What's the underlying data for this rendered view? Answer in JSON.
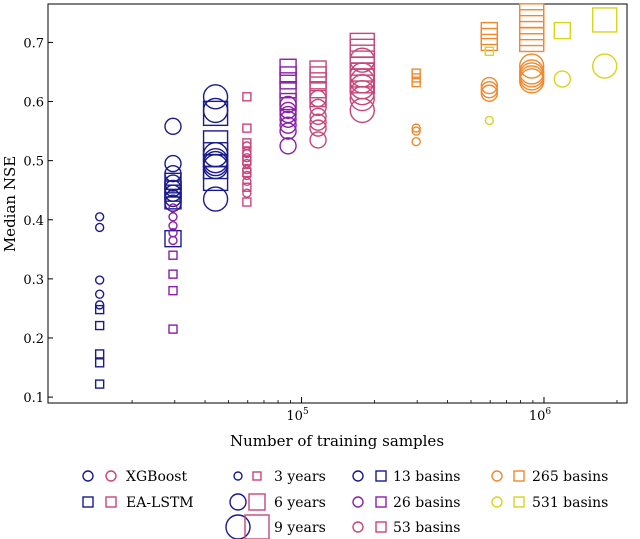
{
  "chart_data": {
    "type": "scatter",
    "title": "",
    "xlabel": "Number of training samples",
    "ylabel": "Median NSE",
    "xscale": "log",
    "xlim": [
      9000,
      2200000
    ],
    "ylim": [
      0.09,
      0.765
    ],
    "xticks": [
      {
        "value": 100000,
        "base": "10",
        "exp": "5"
      },
      {
        "value": 1000000,
        "base": "10",
        "exp": "6"
      }
    ],
    "yticks": [
      {
        "value": 0.1,
        "label": "0.1"
      },
      {
        "value": 0.2,
        "label": "0.2"
      },
      {
        "value": 0.3,
        "label": "0.3"
      },
      {
        "value": 0.4,
        "label": "0.4"
      },
      {
        "value": 0.5,
        "label": "0.5"
      },
      {
        "value": 0.6,
        "label": "0.6"
      },
      {
        "value": 0.7,
        "label": "0.7"
      }
    ],
    "basin_colors": {
      "13": "#1a1a8c",
      "26": "#8a1ea8",
      "53": "#c8457a",
      "265": "#f0892e",
      "531": "#d9d41e"
    },
    "year_sizes": {
      "3": 4,
      "6": 8,
      "9": 12
    },
    "groups": [
      {
        "basins": 13,
        "years": 3,
        "x": 14700,
        "xgb": [
          0.405,
          0.387,
          0.298,
          0.274,
          0.256
        ],
        "lstm": [
          0.248,
          0.221,
          0.173,
          0.158,
          0.122
        ]
      },
      {
        "basins": 13,
        "years": 6,
        "x": 29500,
        "xgb": [
          0.558,
          0.495,
          0.478,
          0.462,
          0.453,
          0.445,
          0.436,
          0.428
        ],
        "lstm": [
          0.465,
          0.452,
          0.445,
          0.432,
          0.368
        ]
      },
      {
        "basins": 26,
        "years": 3,
        "x": 29500,
        "xgb": [
          0.42,
          0.405,
          0.39,
          0.378,
          0.365
        ],
        "lstm": [
          0.34,
          0.308,
          0.28,
          0.215
        ]
      },
      {
        "basins": 13,
        "years": 9,
        "x": 44200,
        "xgb": [
          0.608,
          0.585,
          0.51,
          0.5,
          0.495,
          0.49,
          0.435
        ],
        "lstm": [
          0.58,
          0.53,
          0.51,
          0.49,
          0.47
        ]
      },
      {
        "basins": 53,
        "years": 3,
        "x": 59500,
        "xgb": [
          0.525,
          0.512,
          0.505,
          0.495,
          0.485,
          0.475,
          0.465,
          0.445
        ],
        "lstm": [
          0.608,
          0.555,
          0.53,
          0.515,
          0.5,
          0.48,
          0.455,
          0.43
        ]
      },
      {
        "basins": 26,
        "years": 6,
        "x": 88000,
        "xgb": [
          0.595,
          0.585,
          0.578,
          0.57,
          0.56,
          0.55,
          0.525
        ],
        "lstm": [
          0.658,
          0.645,
          0.635,
          0.62,
          0.6
        ]
      },
      {
        "basins": 53,
        "years": 6,
        "x": 117000,
        "xgb": [
          0.605,
          0.59,
          0.575,
          0.565,
          0.555,
          0.535
        ],
        "lstm": [
          0.655,
          0.645,
          0.635,
          0.62,
          0.605
        ]
      },
      {
        "basins": 53,
        "years": 9,
        "x": 178000,
        "xgb": [
          0.67,
          0.645,
          0.635,
          0.625,
          0.615,
          0.605,
          0.585
        ],
        "lstm": [
          0.695,
          0.685,
          0.675,
          0.665,
          0.655,
          0.645,
          0.635
        ]
      },
      {
        "basins": 265,
        "years": 3,
        "x": 297000,
        "xgb": [
          0.555,
          0.55,
          0.532
        ],
        "lstm": [
          0.648,
          0.64,
          0.632
        ]
      },
      {
        "basins": 265,
        "years": 6,
        "x": 595000,
        "xgb": [
          0.627,
          0.62,
          0.614
        ],
        "lstm": [
          0.72,
          0.71,
          0.7
        ]
      },
      {
        "basins": 531,
        "years": 3,
        "x": 595000,
        "xgb": [
          0.568
        ],
        "lstm": [
          0.685
        ]
      },
      {
        "basins": 265,
        "years": 9,
        "x": 890000,
        "xgb": [
          0.66,
          0.65,
          0.645,
          0.64,
          0.635
        ],
        "lstm": [
          0.745,
          0.735,
          0.725,
          0.715,
          0.705
        ]
      },
      {
        "basins": 531,
        "years": 6,
        "x": 1190000,
        "xgb": [
          0.638
        ],
        "lstm": [
          0.72
        ]
      },
      {
        "basins": 531,
        "years": 9,
        "x": 1780000,
        "xgb": [
          0.66
        ],
        "lstm": [
          0.738
        ]
      }
    ],
    "legend": {
      "models": [
        {
          "key": "xgb",
          "label": "XGBoost"
        },
        {
          "key": "lstm",
          "label": "EA-LSTM"
        }
      ],
      "years": [
        {
          "key": "3",
          "label": "3 years"
        },
        {
          "key": "6",
          "label": "6 years"
        },
        {
          "key": "9",
          "label": "9 years"
        }
      ],
      "basins_col1": [
        {
          "key": "13",
          "label": "13 basins"
        },
        {
          "key": "26",
          "label": "26 basins"
        },
        {
          "key": "53",
          "label": "53 basins"
        }
      ],
      "basins_col2": [
        {
          "key": "265",
          "label": "265 basins"
        },
        {
          "key": "531",
          "label": "531 basins"
        }
      ]
    }
  }
}
